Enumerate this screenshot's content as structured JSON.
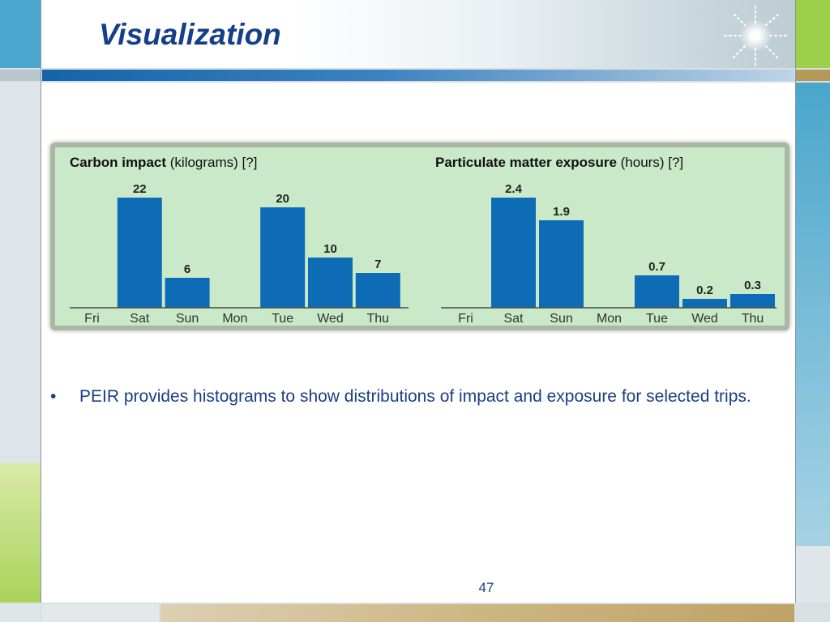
{
  "slide": {
    "title": "Visualization",
    "bullets": [
      "PEIR  provides histograms to show distributions of impact and exposure for selected trips."
    ],
    "page_number": "47"
  },
  "colors": {
    "title": "#163f8a",
    "bar": "#0e6cb6",
    "panel": "#c9e9c8",
    "axis": "#4a4a4a"
  },
  "chart_data": [
    {
      "type": "bar",
      "title": "Carbon impact",
      "subtitle": "(kilograms) [?]",
      "categories": [
        "Fri",
        "Sat",
        "Sun",
        "Mon",
        "Tue",
        "Wed",
        "Thu"
      ],
      "values": [
        null,
        22,
        6,
        null,
        20,
        10,
        7
      ],
      "value_labels": [
        "",
        "22",
        "6",
        "",
        "20",
        "10",
        "7"
      ],
      "ylim": [
        0,
        22
      ],
      "grid": false
    },
    {
      "type": "bar",
      "title": "Particulate matter exposure",
      "subtitle": "(hours) [?]",
      "categories": [
        "Fri",
        "Sat",
        "Sun",
        "Mon",
        "Tue",
        "Wed",
        "Thu"
      ],
      "values": [
        null,
        2.4,
        1.9,
        null,
        0.7,
        0.2,
        0.3
      ],
      "value_labels": [
        "",
        "2.4",
        "1.9",
        "",
        "0.7",
        "0.2",
        "0.3"
      ],
      "ylim": [
        0,
        2.4
      ],
      "grid": false
    }
  ]
}
